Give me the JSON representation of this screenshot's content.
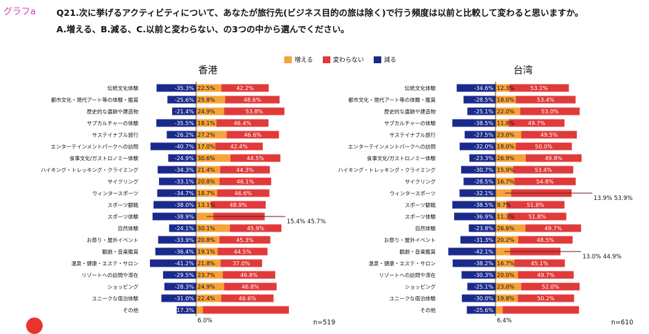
{
  "header": {
    "graph_label": "グラフa",
    "question_line1": "Q21.次に挙げるアクティビティについて、あなたが旅行先(ビジネス目的の旅は除く)で行う頻度は以前と比較して変わると思いますか。",
    "question_line2": "A.増える、B.減る、C.以前と変わらない、の3つの中から選んでください。"
  },
  "legend": {
    "increase": "増える",
    "same": "変わらない",
    "decrease": "減る"
  },
  "colors": {
    "increase": "#f5a33a",
    "same": "#e03a3a",
    "decrease": "#1a2a8c"
  },
  "chart_data": [
    {
      "type": "bar",
      "title": "香港",
      "n_label": "n=519",
      "categories": [
        "伝統文化体験",
        "都市文化・現代アート等の体験・鑑賞",
        "歴史的な遺跡や建造物",
        "サブカルチャーの体験",
        "サステイナブル旅行",
        "エンターテインメントパークへの訪問",
        "食事文化/ガストロノミー体験",
        "ハイキング・トレッキング・クライミング",
        "サイクリング",
        "ウィンタースポーツ",
        "スポーツ観戦",
        "スポーツ体験",
        "自然体験",
        "お祭り・屋外イベント",
        "観劇・音楽鑑賞",
        "温泉・健康・エステ・サロン",
        "リゾートへの訪問や滞在",
        "ショッピング",
        "ユニークな宿泊体験",
        "その他"
      ],
      "series": [
        {
          "name": "減る",
          "values": [
            -35.3,
            -25.6,
            -21.4,
            -35.5,
            -26.2,
            -40.7,
            -24.9,
            -34.3,
            -33.1,
            -34.7,
            -38.0,
            -38.9,
            -24.1,
            -33.9,
            -36.4,
            -41.2,
            -29.5,
            -28.3,
            -31.0,
            -17.3
          ],
          "labels": [
            "-35.3%",
            "-25.6%",
            "-21.4%",
            "-35.5%",
            "-26.2%",
            "-40.7%",
            "-24.9%",
            "-34.3%",
            "-33.1%",
            "-34.7%",
            "-38.0%",
            "-38.9%",
            "-24.1%",
            "-33.9%",
            "-36.4%",
            "-41.2%",
            "-29.5%",
            "-28.3%",
            "-31.0%",
            "-17.3%"
          ]
        },
        {
          "name": "増える",
          "values": [
            22.5,
            25.8,
            24.9,
            18.1,
            27.2,
            17.0,
            30.6,
            21.4,
            20.8,
            18.7,
            13.1,
            15.4,
            30.1,
            20.8,
            19.1,
            21.8,
            23.7,
            24.9,
            22.4,
            6.0
          ],
          "labels": [
            "22.5%",
            "25.8%",
            "24.9%",
            "18.1%",
            "27.2%",
            "17.0%",
            "30.6%",
            "21.4%",
            "20.8%",
            "18.7%",
            "13.1%",
            "15.4%",
            "30.1%",
            "20.8%",
            "19.1%",
            "21.8%",
            "23.7%",
            "24.9%",
            "22.4%",
            "6.0%"
          ]
        },
        {
          "name": "変わらない",
          "values": [
            42.2,
            48.6,
            53.8,
            46.4,
            46.6,
            42.4,
            44.5,
            44.3,
            46.1,
            46.6,
            48.9,
            45.7,
            45.9,
            45.3,
            44.5,
            37.0,
            46.8,
            46.8,
            46.6,
            76.7
          ],
          "labels": [
            "42.2%",
            "48.6%",
            "53.8%",
            "46.4%",
            "46.6%",
            "42.4%",
            "44.5%",
            "44.3%",
            "46.1%",
            "46.6%",
            "48.9%",
            "45.7%",
            "45.9%",
            "45.3%",
            "44.5%",
            "37.0%",
            "46.8%",
            "46.8%",
            "46.6%",
            "76.7%"
          ]
        }
      ],
      "callouts": [
        {
          "row": 11,
          "text": "15.4%  45.7%"
        },
        {
          "row": 19,
          "text": "6.0%"
        }
      ]
    },
    {
      "type": "bar",
      "title": "台湾",
      "n_label": "n=610",
      "categories": [
        "伝統文化体験",
        "都市文化・現代アート等の体験・鑑賞",
        "歴史的な遺跡や建造物",
        "サブカルチャーの体験",
        "サステイナブル旅行",
        "エンターテインメントパークへの訪問",
        "食事文化/ガストロノミー体験",
        "ハイキング・トレッキング・クライミング",
        "サイクリング",
        "ウィンタースポーツ",
        "スポーツ観戦",
        "スポーツ体験",
        "自然体験",
        "お祭り・屋外イベント",
        "観劇・音楽鑑賞",
        "温泉・健康・エステ・サロン",
        "リゾートへの訪問や滞在",
        "ショッピング",
        "ユニークな宿泊体験",
        "その他"
      ],
      "series": [
        {
          "name": "減る",
          "values": [
            -34.6,
            -28.5,
            -25.1,
            -38.5,
            -27.5,
            -32.0,
            -23.3,
            -30.7,
            -28.5,
            -32.1,
            -38.5,
            -36.9,
            -23.8,
            -31.3,
            -42.1,
            -38.2,
            -30.3,
            -25.1,
            -30.0,
            -25.6
          ],
          "labels": [
            "-34.6%",
            "-28.5%",
            "-25.1%",
            "-38.5%",
            "-27.5%",
            "-32.0%",
            "-23.3%",
            "-30.7%",
            "-28.5%",
            "-32.1%",
            "-38.5%",
            "-36.9%",
            "-23.8%",
            "-31.3%",
            "-42.1%",
            "-38.2%",
            "-30.3%",
            "-25.1%",
            "-30.0%",
            "-25.6%"
          ]
        },
        {
          "name": "増える",
          "values": [
            12.3,
            18.0,
            22.0,
            11.8,
            23.0,
            18.0,
            26.9,
            15.9,
            16.7,
            13.9,
            9.7,
            11.3,
            26.6,
            20.2,
            13.0,
            16.7,
            20.0,
            23.0,
            19.8,
            6.4
          ],
          "labels": [
            "12.3%",
            "18.0%",
            "22.0%",
            "11.8%",
            "23.0%",
            "18.0%",
            "26.9%",
            "15.9%",
            "16.7%",
            "13.9%",
            "9.7%",
            "11.3%",
            "26.6%",
            "20.2%",
            "13.0%",
            "16.7%",
            "20.0%",
            "23.0%",
            "19.8%",
            "6.4%"
          ]
        },
        {
          "name": "変わらない",
          "values": [
            53.1,
            53.4,
            53.0,
            49.7,
            49.5,
            50.0,
            49.8,
            53.4,
            54.8,
            53.9,
            51.8,
            51.8,
            49.7,
            48.5,
            44.9,
            45.1,
            49.7,
            52.0,
            50.2,
            68.0
          ],
          "labels": [
            "53.1%",
            "53.4%",
            "53.0%",
            "49.7%",
            "49.5%",
            "50.0%",
            "49.8%",
            "53.4%",
            "54.8%",
            "53.9%",
            "51.8%",
            "51.8%",
            "49.7%",
            "48.5%",
            "44.9%",
            "45.1%",
            "49.7%",
            "52.0%",
            "50.2%",
            "68.0%"
          ]
        }
      ],
      "callouts": [
        {
          "row": 9,
          "text": "13.9%  53.9%"
        },
        {
          "row": 14,
          "text": "13.0%  44.9%"
        },
        {
          "row": 19,
          "text": "6.4%"
        }
      ]
    }
  ]
}
